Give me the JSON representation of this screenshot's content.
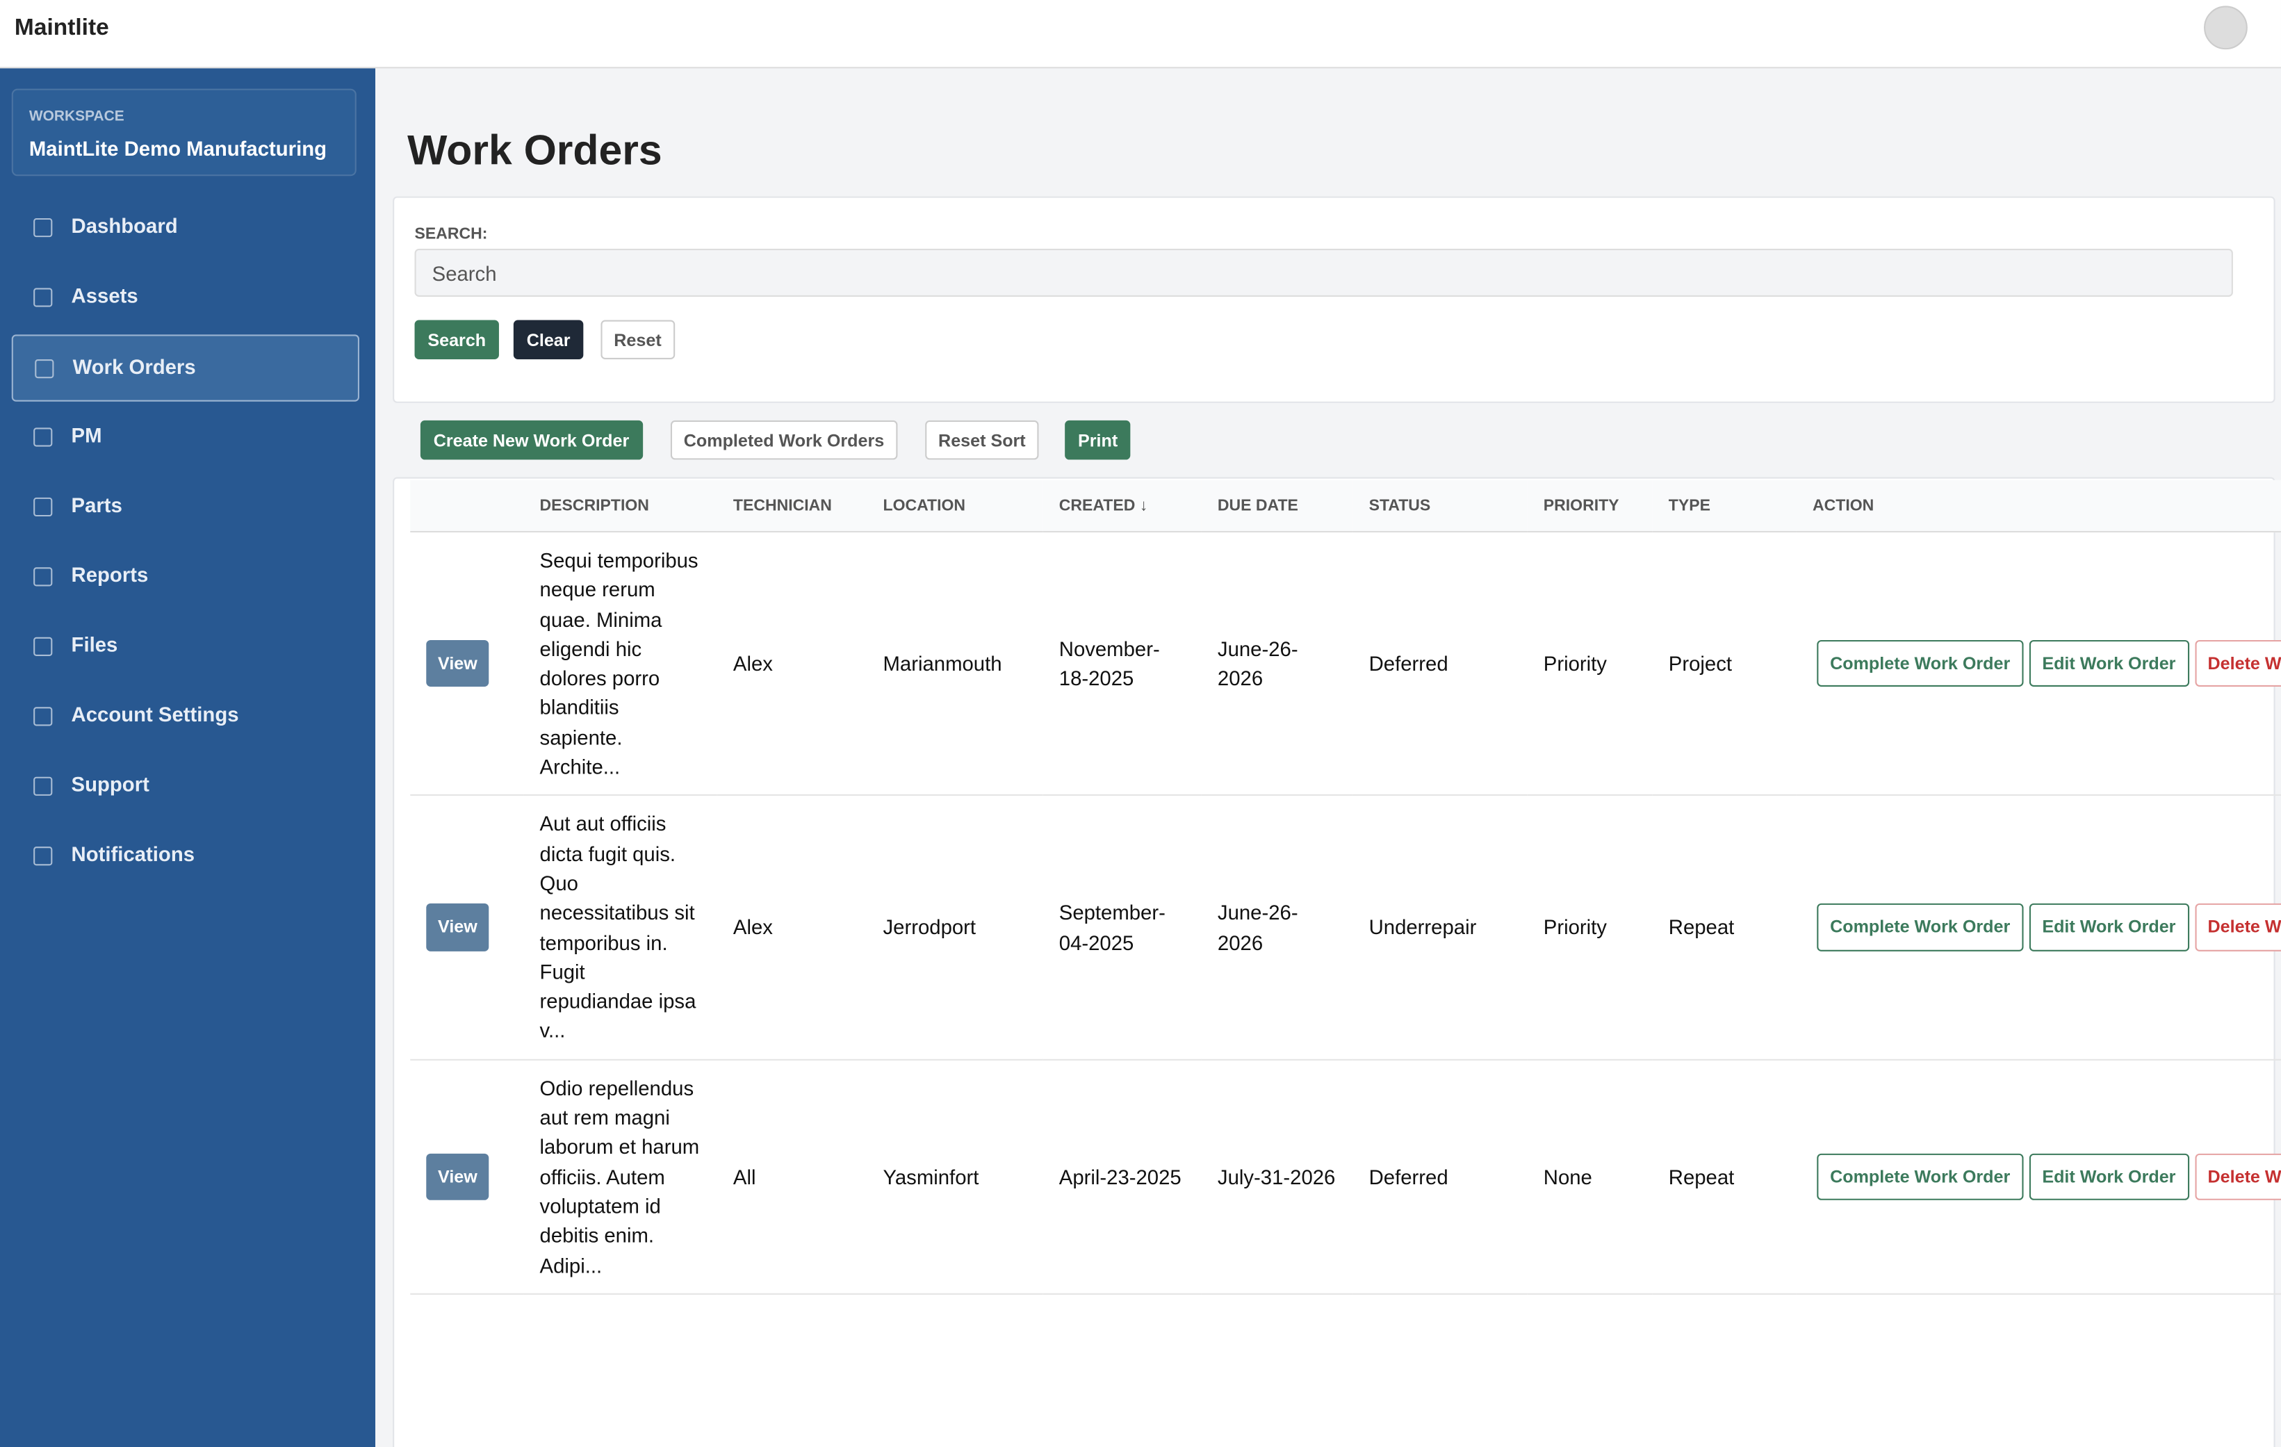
{
  "header": {
    "brand": "Maintlite"
  },
  "sidebar": {
    "workspace_label": "WORKSPACE",
    "workspace_name": "MaintLite Demo Manufacturing",
    "nav": [
      "Dashboard",
      "Assets",
      "Work Orders",
      "PM",
      "Parts",
      "Reports",
      "Files",
      "Account Settings",
      "Support",
      "Notifications"
    ],
    "active": 2
  },
  "page": {
    "title": "Work Orders"
  },
  "search": {
    "label": "SEARCH:",
    "placeholder": "Search",
    "buttons": [
      "Search",
      "Clear",
      "Reset"
    ]
  },
  "toolbar": [
    "Create New Work Order",
    "Completed Work Orders",
    "Reset Sort",
    "Print"
  ],
  "table": {
    "columns": [
      "DESCRIPTION",
      "TECHNICIAN",
      "LOCATION",
      "CREATED",
      "DUE DATE",
      "STATUS",
      "PRIORITY",
      "TYPE",
      "ACTION"
    ],
    "rows": [
      {
        "view": "View",
        "description": "Sequi temporibus neque rerum quae. Minima eligendi hic dolores porro blanditiis sapiente. Archite...",
        "technician": "Alex",
        "location": "Marianmouth",
        "created": "November-18-2025",
        "due": "June-26-2026",
        "status": "Deferred",
        "priority": "Priority",
        "type": "Project",
        "actions": [
          "Complete Work Order",
          "Edit Work Order",
          "Delete Work Order"
        ]
      },
      {
        "view": "View",
        "description": "Aut aut officiis dicta fugit quis. Quo necessitatibus sit temporibus in. Fugit repudiandae ipsa v...",
        "technician": "Alex",
        "location": "Jerrodport",
        "created": "September-04-2025",
        "due": "June-26-2026",
        "status": "Underrepair",
        "priority": "Priority",
        "type": "Repeat",
        "actions": [
          "Complete Work Order",
          "Edit Work Order",
          "Delete Work Order"
        ]
      },
      {
        "view": "View",
        "description": "Odio repellendus aut rem magni laborum et harum officiis. Autem voluptatem id debitis enim. Adipi...",
        "technician": "All",
        "location": "Yasminfort",
        "created": "April-23-2025",
        "due": "July-31-2026",
        "status": "Deferred",
        "priority": "None",
        "type": "Repeat",
        "actions": [
          "Complete Work Order",
          "Edit Work Order",
          "Delete Work Order"
        ]
      }
    ]
  }
}
